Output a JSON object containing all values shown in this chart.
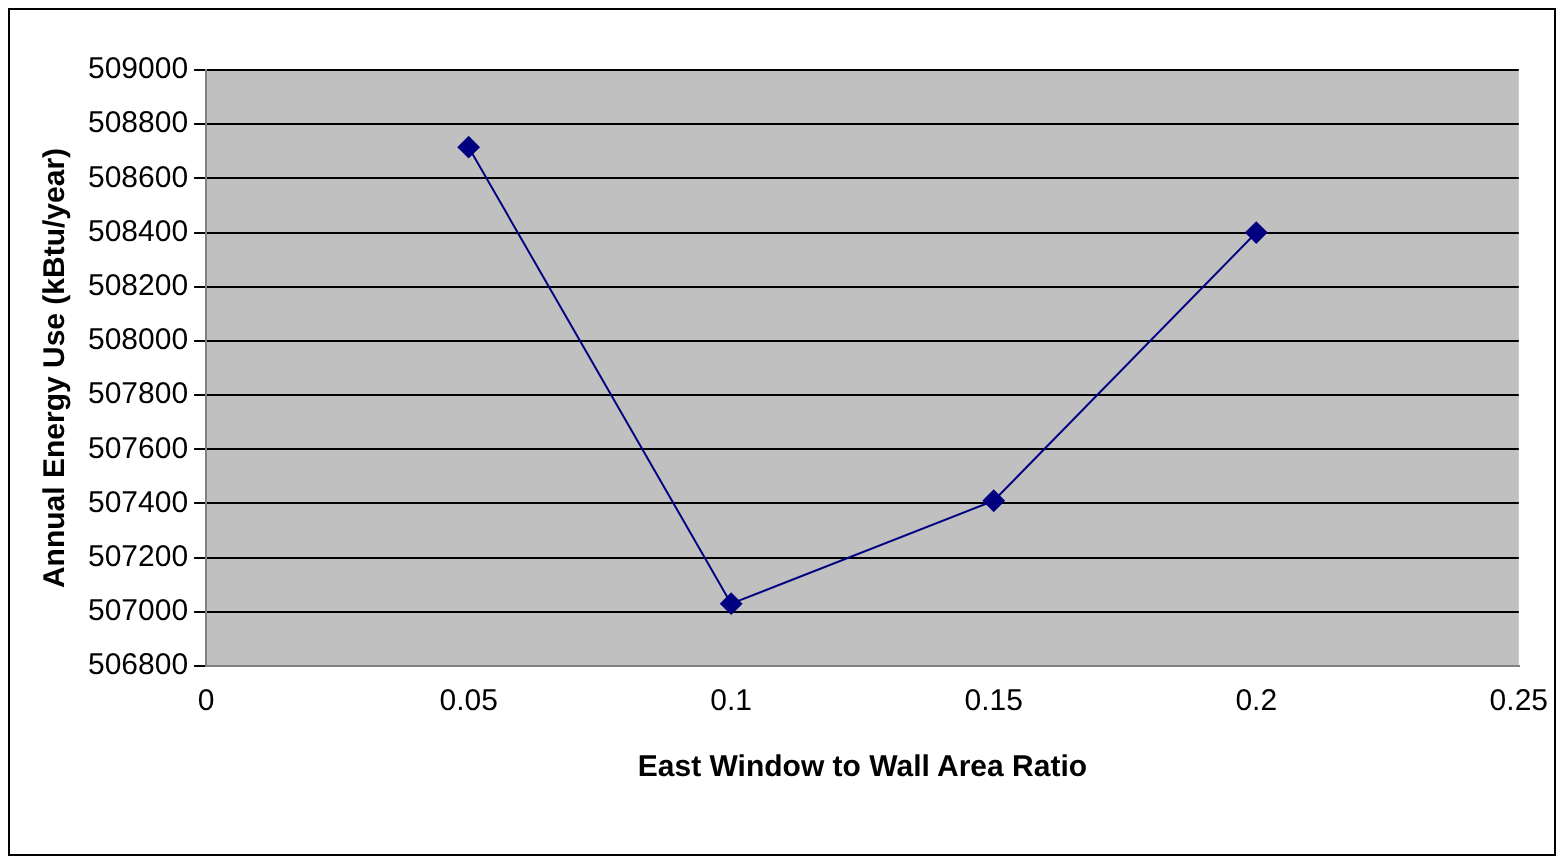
{
  "chart_data": {
    "type": "line",
    "xlabel": "East Window to Wall Area Ratio",
    "ylabel": "Annual Energy Use (kBtu/year)",
    "x": [
      0.05,
      0.1,
      0.15,
      0.2
    ],
    "series": [
      {
        "color": "#000080",
        "values": [
          508715,
          507030,
          507410,
          508400
        ]
      }
    ],
    "xlim": [
      0,
      0.25
    ],
    "xticks": [
      0,
      0.05,
      0.1,
      0.15,
      0.2,
      0.25
    ],
    "ylim": [
      506800,
      509000
    ],
    "yticks": [
      506800,
      507000,
      507200,
      507400,
      507600,
      507800,
      508000,
      508200,
      508400,
      508600,
      508800,
      509000
    ],
    "grid": "y",
    "legend": false,
    "marker": "diamond",
    "line_style": "solid"
  }
}
